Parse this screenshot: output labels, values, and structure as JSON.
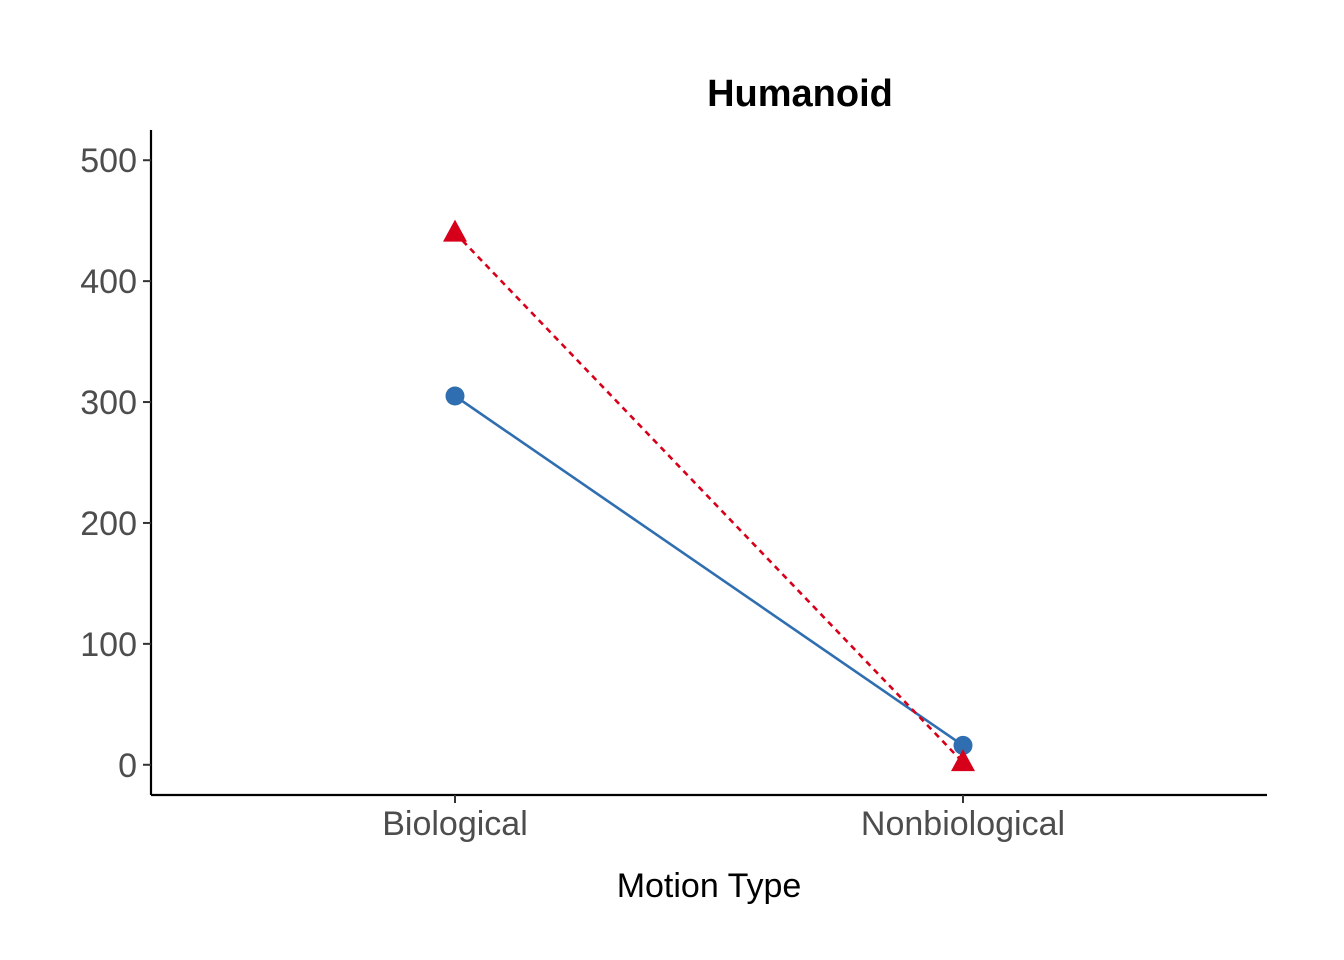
{
  "chart_data": {
    "type": "line",
    "title": "Humanoid",
    "xlabel": "Motion Type",
    "ylabel": "",
    "categories": [
      "Biological",
      "Nonbiological"
    ],
    "ylim": [
      -25,
      525
    ],
    "yticks": [
      0,
      100,
      200,
      300,
      400,
      500
    ],
    "grid": false,
    "legend": "none",
    "series": [
      {
        "values": [
          305,
          16
        ],
        "color": "#2F6EB0",
        "marker": "circle",
        "linestyle": "solid"
      },
      {
        "values": [
          440,
          2
        ],
        "color": "#D7001A",
        "marker": "triangle",
        "linestyle": "dashed"
      }
    ]
  }
}
